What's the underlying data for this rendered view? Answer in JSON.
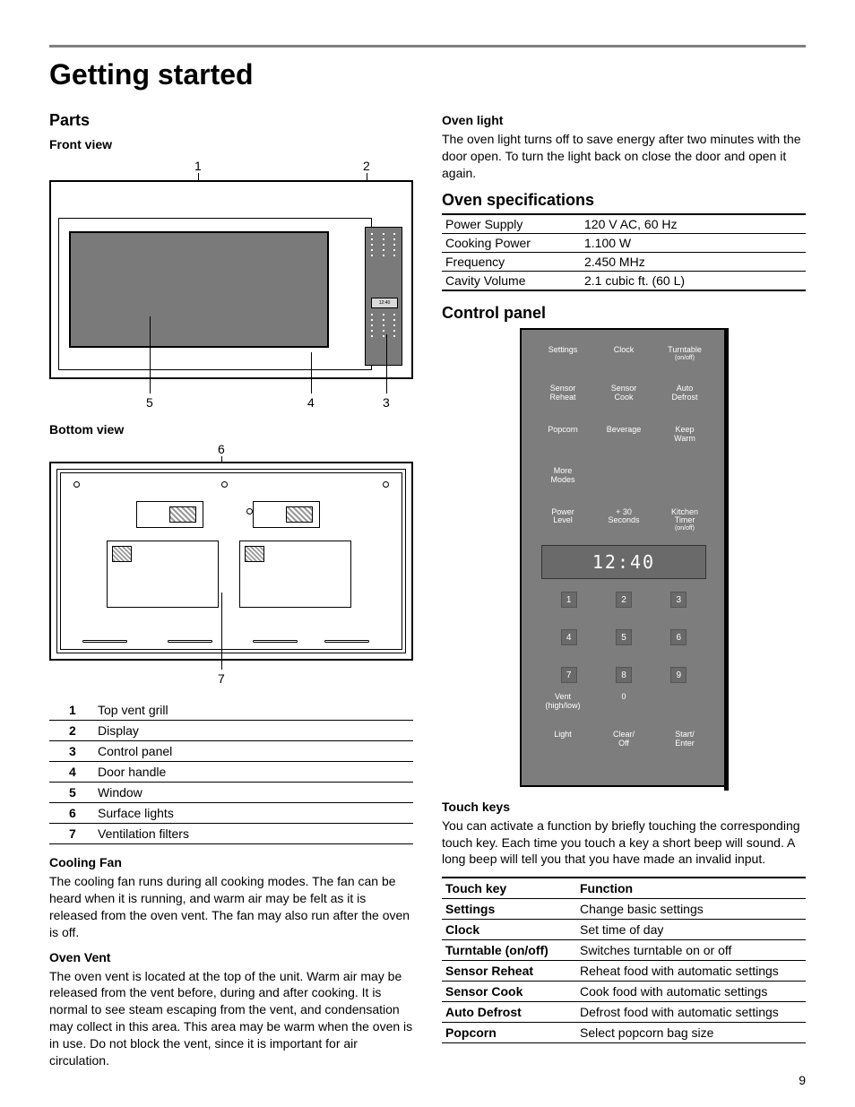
{
  "page_title": "Getting started",
  "page_number": "9",
  "left": {
    "parts_heading": "Parts",
    "front_view_label": "Front view",
    "bottom_view_label": "Bottom view",
    "front_callouts": {
      "c1": "1",
      "c2": "2",
      "c3": "3",
      "c4": "4",
      "c5": "5"
    },
    "bottom_callouts": {
      "c6": "6",
      "c7": "7"
    },
    "mini_display": "12:40",
    "parts_list": [
      {
        "n": "1",
        "label": "Top vent grill"
      },
      {
        "n": "2",
        "label": "Display"
      },
      {
        "n": "3",
        "label": "Control panel"
      },
      {
        "n": "4",
        "label": "Door handle"
      },
      {
        "n": "5",
        "label": "Window"
      },
      {
        "n": "6",
        "label": "Surface lights"
      },
      {
        "n": "7",
        "label": "Ventilation filters"
      }
    ],
    "cooling_fan_h": "Cooling Fan",
    "cooling_fan_p": "The cooling fan runs during all cooking modes. The fan can be heard when it is running, and warm air may be felt as it is released from the oven vent. The fan may also run after the oven is off.",
    "oven_vent_h": "Oven Vent",
    "oven_vent_p": "The oven vent is located at the top of the unit. Warm air may be released from the vent before, during and after cooking. It is normal to see steam escaping from the vent, and condensation may collect in this area. This area may be warm when the oven is in use. Do not block the vent, since it is important for air circulation."
  },
  "right": {
    "oven_light_h": "Oven light",
    "oven_light_p": "The oven light turns off to save energy after two minutes with the door open. To turn the light back on close the door and open it again.",
    "spec_h": "Oven specifications",
    "spec_rows": [
      {
        "k": "Power Supply",
        "v": "120 V AC, 60 Hz"
      },
      {
        "k": "Cooking Power",
        "v": "1.100 W"
      },
      {
        "k": "Frequency",
        "v": "2.450 MHz"
      },
      {
        "k": "Cavity Volume",
        "v": "2.1 cubic ft. (60 L)"
      }
    ],
    "ctrl_h": "Control panel",
    "cp": {
      "row1": [
        "Settings",
        "Clock",
        "Turntable"
      ],
      "row1_sub": [
        "",
        "",
        "(on/off)"
      ],
      "row2": [
        "Sensor\nReheat",
        "Sensor\nCook",
        "Auto\nDefrost"
      ],
      "row3": [
        "Popcorn",
        "Beverage",
        "Keep\nWarm"
      ],
      "row4": [
        "More\nModes",
        "",
        ""
      ],
      "row5": [
        "Power\nLevel",
        "+ 30\nSeconds",
        "Kitchen\nTimer"
      ],
      "row5_sub": [
        "",
        "",
        "(on/off)"
      ],
      "display": "12:40",
      "nums": [
        "1",
        "2",
        "3",
        "4",
        "5",
        "6",
        "7",
        "8",
        "9"
      ],
      "bottom": [
        "Vent",
        "0",
        "",
        ""
      ],
      "bottom_sub": [
        "(high/low)",
        "",
        "",
        ""
      ],
      "bottom2": [
        "Light",
        "Clear/\nOff",
        "Start/\nEnter"
      ]
    },
    "touch_h": "Touch keys",
    "touch_p": "You can activate a function by briefly touching the corresponding touch key. Each time you touch a key a short beep will sound. A long beep will tell you that you have made an invalid input.",
    "touch_header": {
      "k": "Touch key",
      "v": "Function"
    },
    "touch_rows": [
      {
        "k": "Settings",
        "v": "Change basic settings"
      },
      {
        "k": "Clock",
        "v": "Set time of day"
      },
      {
        "k": "Turntable (on/off)",
        "v": "Switches turntable on or off"
      },
      {
        "k": "Sensor Reheat",
        "v": "Reheat food with automatic settings"
      },
      {
        "k": "Sensor Cook",
        "v": "Cook food with automatic settings"
      },
      {
        "k": "Auto Defrost",
        "v": "Defrost food with automatic settings"
      },
      {
        "k": "Popcorn",
        "v": "Select popcorn bag size"
      }
    ]
  },
  "colors": {
    "rule": "#808080",
    "panel_bg": "#7d7d7d",
    "panel_display_bg": "#6a6a6a",
    "diagram_fill": "#7a7a7a"
  }
}
